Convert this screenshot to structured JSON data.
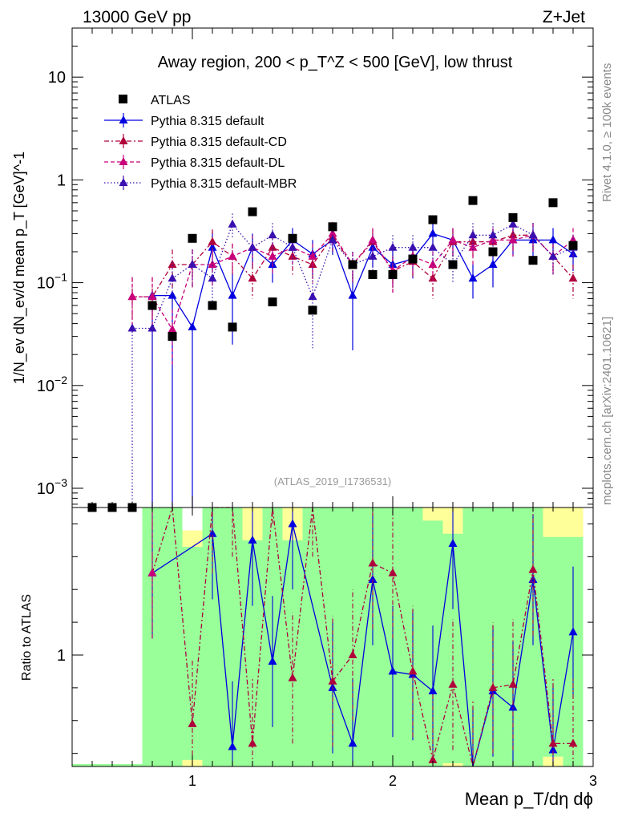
{
  "header": {
    "left": "13000 GeV pp",
    "right": "Z+Jet"
  },
  "side": {
    "rivet": "Rivet 4.1.0, ≥ 100k events",
    "mcplots": "mcplots.cern.ch [arXiv:2401.10621]"
  },
  "chart_data": {
    "type": "scatter",
    "title": "Away region, 200 < p_T^Z < 500 [GeV], low thrust",
    "analysis_tag": "(ATLAS_2019_I1736531)",
    "xlabel": "Mean p_T/dη dϕ",
    "ylabel": "1/N_ev dN_ev/d mean p_T [GeV]^-1",
    "ratio_ylabel": "Ratio to ATLAS",
    "xlim": [
      0.4,
      3.0
    ],
    "ylim": [
      0.00065,
      30
    ],
    "ratio_ylim": [
      0.66,
      1.45
    ],
    "yscale": "log",
    "x_ticks": [
      1,
      2,
      3
    ],
    "x_tick_labels": [
      "1",
      "2",
      "3"
    ],
    "y_ticks": [
      0.001,
      0.01,
      0.1,
      1,
      10
    ],
    "y_tick_labels": [
      "10^-3",
      "10^-2",
      "10^-1",
      "1",
      "10"
    ],
    "ratio_ticks": [
      1
    ],
    "ratio_tick_labels": [
      "1"
    ],
    "x": [
      0.5,
      0.6,
      0.7,
      0.8,
      0.9,
      1.0,
      1.1,
      1.2,
      1.3,
      1.4,
      1.5,
      1.6,
      1.7,
      1.8,
      1.9,
      2.0,
      2.1,
      2.2,
      2.3,
      2.4,
      2.5,
      2.6,
      2.7,
      2.8,
      2.9
    ],
    "series": [
      {
        "name": "ATLAS",
        "style": "data",
        "color": "#000000",
        "values": [
          0.0006,
          0.0006,
          0.0006,
          0.06,
          0.03,
          0.27,
          0.06,
          0.037,
          0.49,
          0.065,
          0.27,
          0.054,
          0.35,
          0.15,
          0.12,
          0.12,
          0.17,
          0.41,
          0.15,
          0.63,
          0.2,
          0.43,
          0.165,
          0.6,
          0.23
        ]
      },
      {
        "name": "Pythia 8.315 default",
        "style": "solid",
        "color": "#0000e0",
        "values": [
          null,
          null,
          null,
          0.075,
          0.075,
          0.037,
          0.22,
          0.075,
          0.22,
          0.15,
          0.26,
          0.19,
          0.26,
          0.075,
          0.22,
          0.15,
          0.17,
          0.3,
          0.26,
          0.11,
          0.15,
          0.26,
          0.26,
          0.26,
          0.19
        ],
        "err_lo": [
          null,
          null,
          null,
          0.075,
          0.075,
          0.037,
          0.09,
          0.05,
          0.08,
          0.05,
          0.08,
          0.07,
          0.07,
          0.053,
          0.08,
          0.06,
          0.06,
          0.09,
          0.08,
          0.04,
          0.06,
          0.08,
          0.08,
          0.08,
          0.06
        ],
        "err_hi": [
          null,
          null,
          null,
          0.0,
          0.0,
          0.0,
          0.09,
          0.05,
          0.08,
          0.05,
          0.08,
          0.07,
          0.07,
          0.053,
          0.08,
          0.06,
          0.06,
          0.09,
          0.08,
          0.04,
          0.06,
          0.08,
          0.08,
          0.08,
          0.06
        ],
        "ratio": [
          null,
          null,
          null,
          1.25,
          null,
          null,
          1.37,
          0.72,
          1.35,
          0.98,
          1.4,
          null,
          0.9,
          0.73,
          1.23,
          0.95,
          0.94,
          0.89,
          1.34,
          0.64,
          0.89,
          0.84,
          1.23,
          0.71,
          1.07
        ]
      },
      {
        "name": "Pythia 8.315 default-CD",
        "style": "dashdot",
        "color": "#b0003c",
        "values": [
          null,
          null,
          0.073,
          0.073,
          0.15,
          0.15,
          0.25,
          0.18,
          0.11,
          0.22,
          0.18,
          0.15,
          0.28,
          0.15,
          0.25,
          0.13,
          0.16,
          0.11,
          0.25,
          0.25,
          0.25,
          0.29,
          0.29,
          0.18,
          0.11
        ],
        "err_lo": [
          null,
          null,
          0.04,
          0.04,
          0.06,
          0.06,
          0.08,
          0.06,
          0.04,
          0.07,
          0.06,
          0.05,
          0.08,
          0.05,
          0.08,
          0.05,
          0.05,
          0.04,
          0.08,
          0.08,
          0.08,
          0.09,
          0.09,
          0.06,
          0.04
        ],
        "err_hi": [
          null,
          null,
          0.04,
          0.04,
          0.06,
          0.06,
          0.08,
          0.06,
          0.04,
          0.07,
          0.06,
          0.05,
          0.08,
          0.05,
          0.08,
          0.05,
          0.05,
          0.04,
          0.08,
          0.08,
          0.08,
          0.09,
          0.09,
          0.06,
          0.04
        ],
        "ratio": [
          null,
          null,
          null,
          1.25,
          1.8,
          0.79,
          1.45,
          1.5,
          0.73,
          1.6,
          0.93,
          1.5,
          0.92,
          1.0,
          1.28,
          1.25,
          0.95,
          0.68,
          0.91,
          0.66,
          0.9,
          0.91,
          1.26,
          0.73,
          0.73
        ]
      },
      {
        "name": "Pythia 8.315 default-DL",
        "style": "dashed",
        "color": "#c8007a",
        "values": [
          null,
          null,
          0.073,
          0.073,
          0.035,
          0.15,
          0.15,
          0.18,
          0.22,
          0.18,
          0.22,
          0.18,
          0.3,
          0.15,
          0.26,
          0.13,
          0.18,
          0.15,
          0.26,
          0.22,
          0.26,
          0.26,
          0.29,
          0.18,
          0.26
        ],
        "err_lo": [
          null,
          null,
          0.04,
          0.04,
          0.02,
          0.06,
          0.06,
          0.06,
          0.07,
          0.06,
          0.07,
          0.06,
          0.09,
          0.05,
          0.08,
          0.05,
          0.06,
          0.05,
          0.08,
          0.07,
          0.08,
          0.08,
          0.09,
          0.06,
          0.08
        ],
        "err_hi": [
          null,
          null,
          0.04,
          0.04,
          0.02,
          0.06,
          0.06,
          0.06,
          0.07,
          0.06,
          0.07,
          0.06,
          0.09,
          0.05,
          0.08,
          0.05,
          0.06,
          0.05,
          0.08,
          0.07,
          0.08,
          0.08,
          0.09,
          0.06,
          0.08
        ],
        "ratio": [
          null,
          null,
          null,
          1.25,
          null,
          null,
          null,
          null,
          null,
          null,
          null,
          null,
          null,
          null,
          null,
          null,
          null,
          null,
          null,
          null,
          null,
          null,
          null,
          null,
          null
        ]
      },
      {
        "name": "Pythia 8.315 default-MBR",
        "style": "dotted",
        "color": "#3a10b0",
        "values": [
          null,
          null,
          0.036,
          0.036,
          0.11,
          0.15,
          0.11,
          0.37,
          0.22,
          0.29,
          0.22,
          0.073,
          0.26,
          0.15,
          0.18,
          0.22,
          0.22,
          0.22,
          0.15,
          0.29,
          0.29,
          0.37,
          0.29,
          0.18,
          0.22
        ],
        "err_lo": [
          null,
          null,
          0.036,
          0.036,
          0.05,
          0.06,
          0.05,
          0.1,
          0.07,
          0.09,
          0.07,
          0.05,
          0.08,
          0.05,
          0.06,
          0.07,
          0.07,
          0.07,
          0.05,
          0.09,
          0.09,
          0.1,
          0.09,
          0.06,
          0.07
        ],
        "err_hi": [
          null,
          null,
          0.0,
          0.0,
          0.05,
          0.06,
          0.05,
          0.1,
          0.07,
          0.09,
          0.07,
          0.05,
          0.08,
          0.05,
          0.06,
          0.07,
          0.07,
          0.07,
          0.05,
          0.09,
          0.09,
          0.1,
          0.09,
          0.06,
          0.07
        ]
      }
    ],
    "ratio_bands": {
      "x_from": 0.75,
      "yellow_hi": [
        null,
        null,
        null,
        1.45,
        1.45,
        1.38,
        1.45,
        1.45,
        1.45,
        1.45,
        1.45,
        1.45,
        1.45,
        1.45,
        1.45,
        1.45,
        1.45,
        1.45,
        1.45,
        1.45,
        1.45,
        1.45,
        1.45,
        1.45,
        1.45
      ],
      "yellow_lo": [
        null,
        null,
        null,
        0.66,
        0.66,
        0.66,
        0.66,
        0.66,
        0.66,
        0.66,
        0.66,
        0.66,
        0.66,
        0.66,
        0.66,
        0.66,
        0.66,
        0.66,
        0.66,
        0.66,
        0.66,
        0.66,
        0.66,
        0.66,
        0.66
      ],
      "green_hi": [
        null,
        null,
        null,
        1.45,
        1.45,
        1.33,
        1.45,
        1.45,
        1.35,
        1.45,
        1.35,
        1.45,
        1.45,
        1.45,
        1.45,
        1.45,
        1.45,
        1.41,
        1.37,
        1.45,
        1.45,
        1.45,
        1.45,
        1.36,
        1.36
      ],
      "green_lo": [
        null,
        null,
        null,
        0.66,
        0.66,
        0.68,
        0.66,
        0.66,
        0.66,
        0.66,
        0.66,
        0.66,
        0.66,
        0.66,
        0.66,
        0.66,
        0.66,
        0.66,
        0.67,
        0.66,
        0.66,
        0.66,
        0.66,
        0.69,
        0.66
      ]
    }
  }
}
